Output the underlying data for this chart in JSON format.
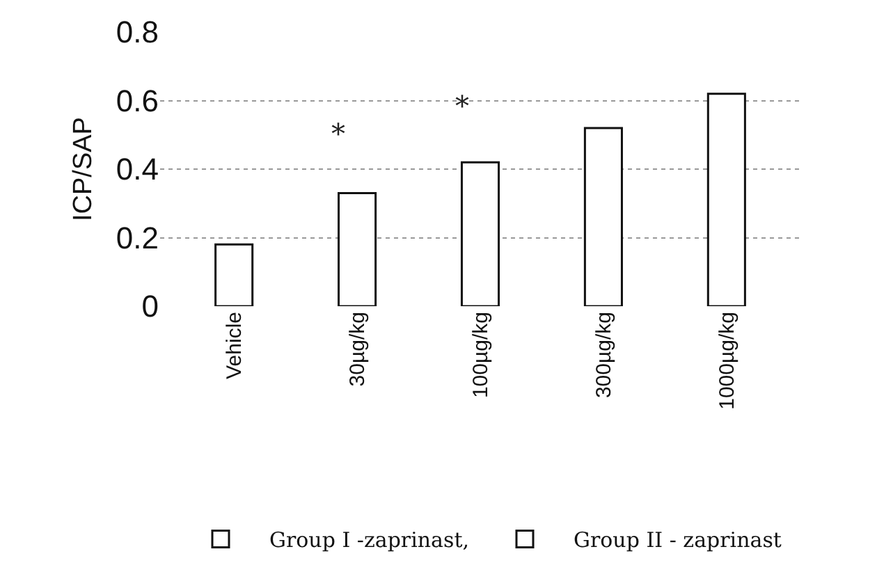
{
  "chart_data": {
    "type": "bar",
    "ylabel": "ICP/SAP",
    "categories": [
      "Vehicle",
      "30µg/kg",
      "100µg/kg",
      "300µg/kg",
      "1000µg/kg"
    ],
    "series": [
      {
        "name": "Group I -zaprinast,",
        "color": "#ffffff",
        "values": [
          0.18,
          0.33,
          0.42,
          0.52,
          0.62
        ]
      },
      {
        "name": "Group II - zaprinast",
        "color": "#ffffff",
        "values": [
          null,
          null,
          null,
          null,
          null
        ]
      }
    ],
    "ylim": [
      0,
      0.8
    ],
    "yticks": [
      0,
      0.2,
      0.4,
      0.6,
      0.8
    ],
    "grid": "y",
    "legend": "bottom",
    "annotations": [
      "*",
      "*"
    ]
  }
}
